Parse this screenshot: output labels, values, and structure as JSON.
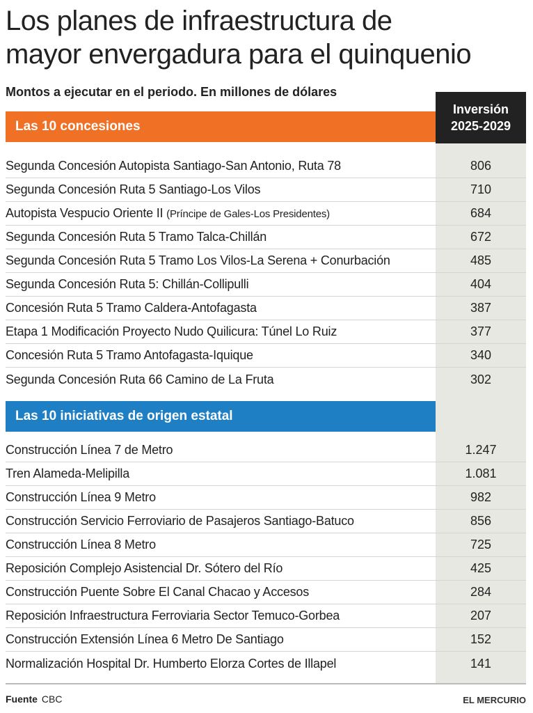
{
  "title": {
    "line1": "Los planes de infraestructura de",
    "line2": "mayor envergadura para el quinquenio"
  },
  "subtitle": "Montos a ejecutar en el periodo. En millones de dólares",
  "column_header": {
    "line1": "Inversión",
    "line2": "2025-2029"
  },
  "sections": [
    {
      "label": "Las 10 concesiones",
      "color": "#f07125",
      "rows": [
        {
          "name": "Segunda Concesión Autopista Santiago-San Antonio, Ruta 78",
          "value": "806"
        },
        {
          "name": "Segunda Concesión Ruta 5 Santiago-Los Vilos",
          "value": "710"
        },
        {
          "name": "Autopista Vespucio Oriente II",
          "note": "(Príncipe de Gales-Los Presidentes)",
          "value": "684"
        },
        {
          "name": "Segunda Concesión Ruta 5 Tramo Talca-Chillán",
          "value": "672"
        },
        {
          "name": "Segunda Concesión Ruta 5 Tramo Los Vilos-La Serena + Conurbación",
          "value": "485"
        },
        {
          "name": "Segunda Concesión Ruta 5: Chillán-Collipulli",
          "value": "404"
        },
        {
          "name": "Concesión Ruta 5 Tramo Caldera-Antofagasta",
          "value": "387"
        },
        {
          "name": "Etapa 1 Modificación Proyecto Nudo Quilicura: Túnel Lo Ruiz",
          "value": "377"
        },
        {
          "name": "Concesión Ruta 5 Tramo Antofagasta-Iquique",
          "value": "340"
        },
        {
          "name": "Segunda Concesión Ruta 66 Camino de La Fruta",
          "value": "302"
        }
      ]
    },
    {
      "label": "Las 10 iniciativas de origen estatal",
      "color": "#1f7fc4",
      "rows": [
        {
          "name": "Construcción Línea 7 de Metro",
          "value": "1.247"
        },
        {
          "name": "Tren Alameda-Melipilla",
          "value": "1.081"
        },
        {
          "name": "Construcción Línea 9 Metro",
          "value": "982"
        },
        {
          "name": "Construcción Servicio Ferroviario de Pasajeros Santiago-Batuco",
          "value": "856"
        },
        {
          "name": "Construcción Línea 8 Metro",
          "value": "725"
        },
        {
          "name": "Reposición Complejo Asistencial Dr. Sótero del Río",
          "value": "425"
        },
        {
          "name": "Construcción Puente Sobre El Canal Chacao y Accesos",
          "value": "284"
        },
        {
          "name": "Reposición Infraestructura Ferroviaria Sector Temuco-Gorbea",
          "value": "207"
        },
        {
          "name": "Construcción Extensión Línea 6 Metro De Santiago",
          "value": "152"
        },
        {
          "name": "Normalización Hospital Dr. Humberto Elorza Cortes de Illapel",
          "value": "141"
        }
      ]
    }
  ],
  "footer": {
    "source_label": "Fuente",
    "source": "CBC",
    "brand": "EL MERCURIO"
  }
}
